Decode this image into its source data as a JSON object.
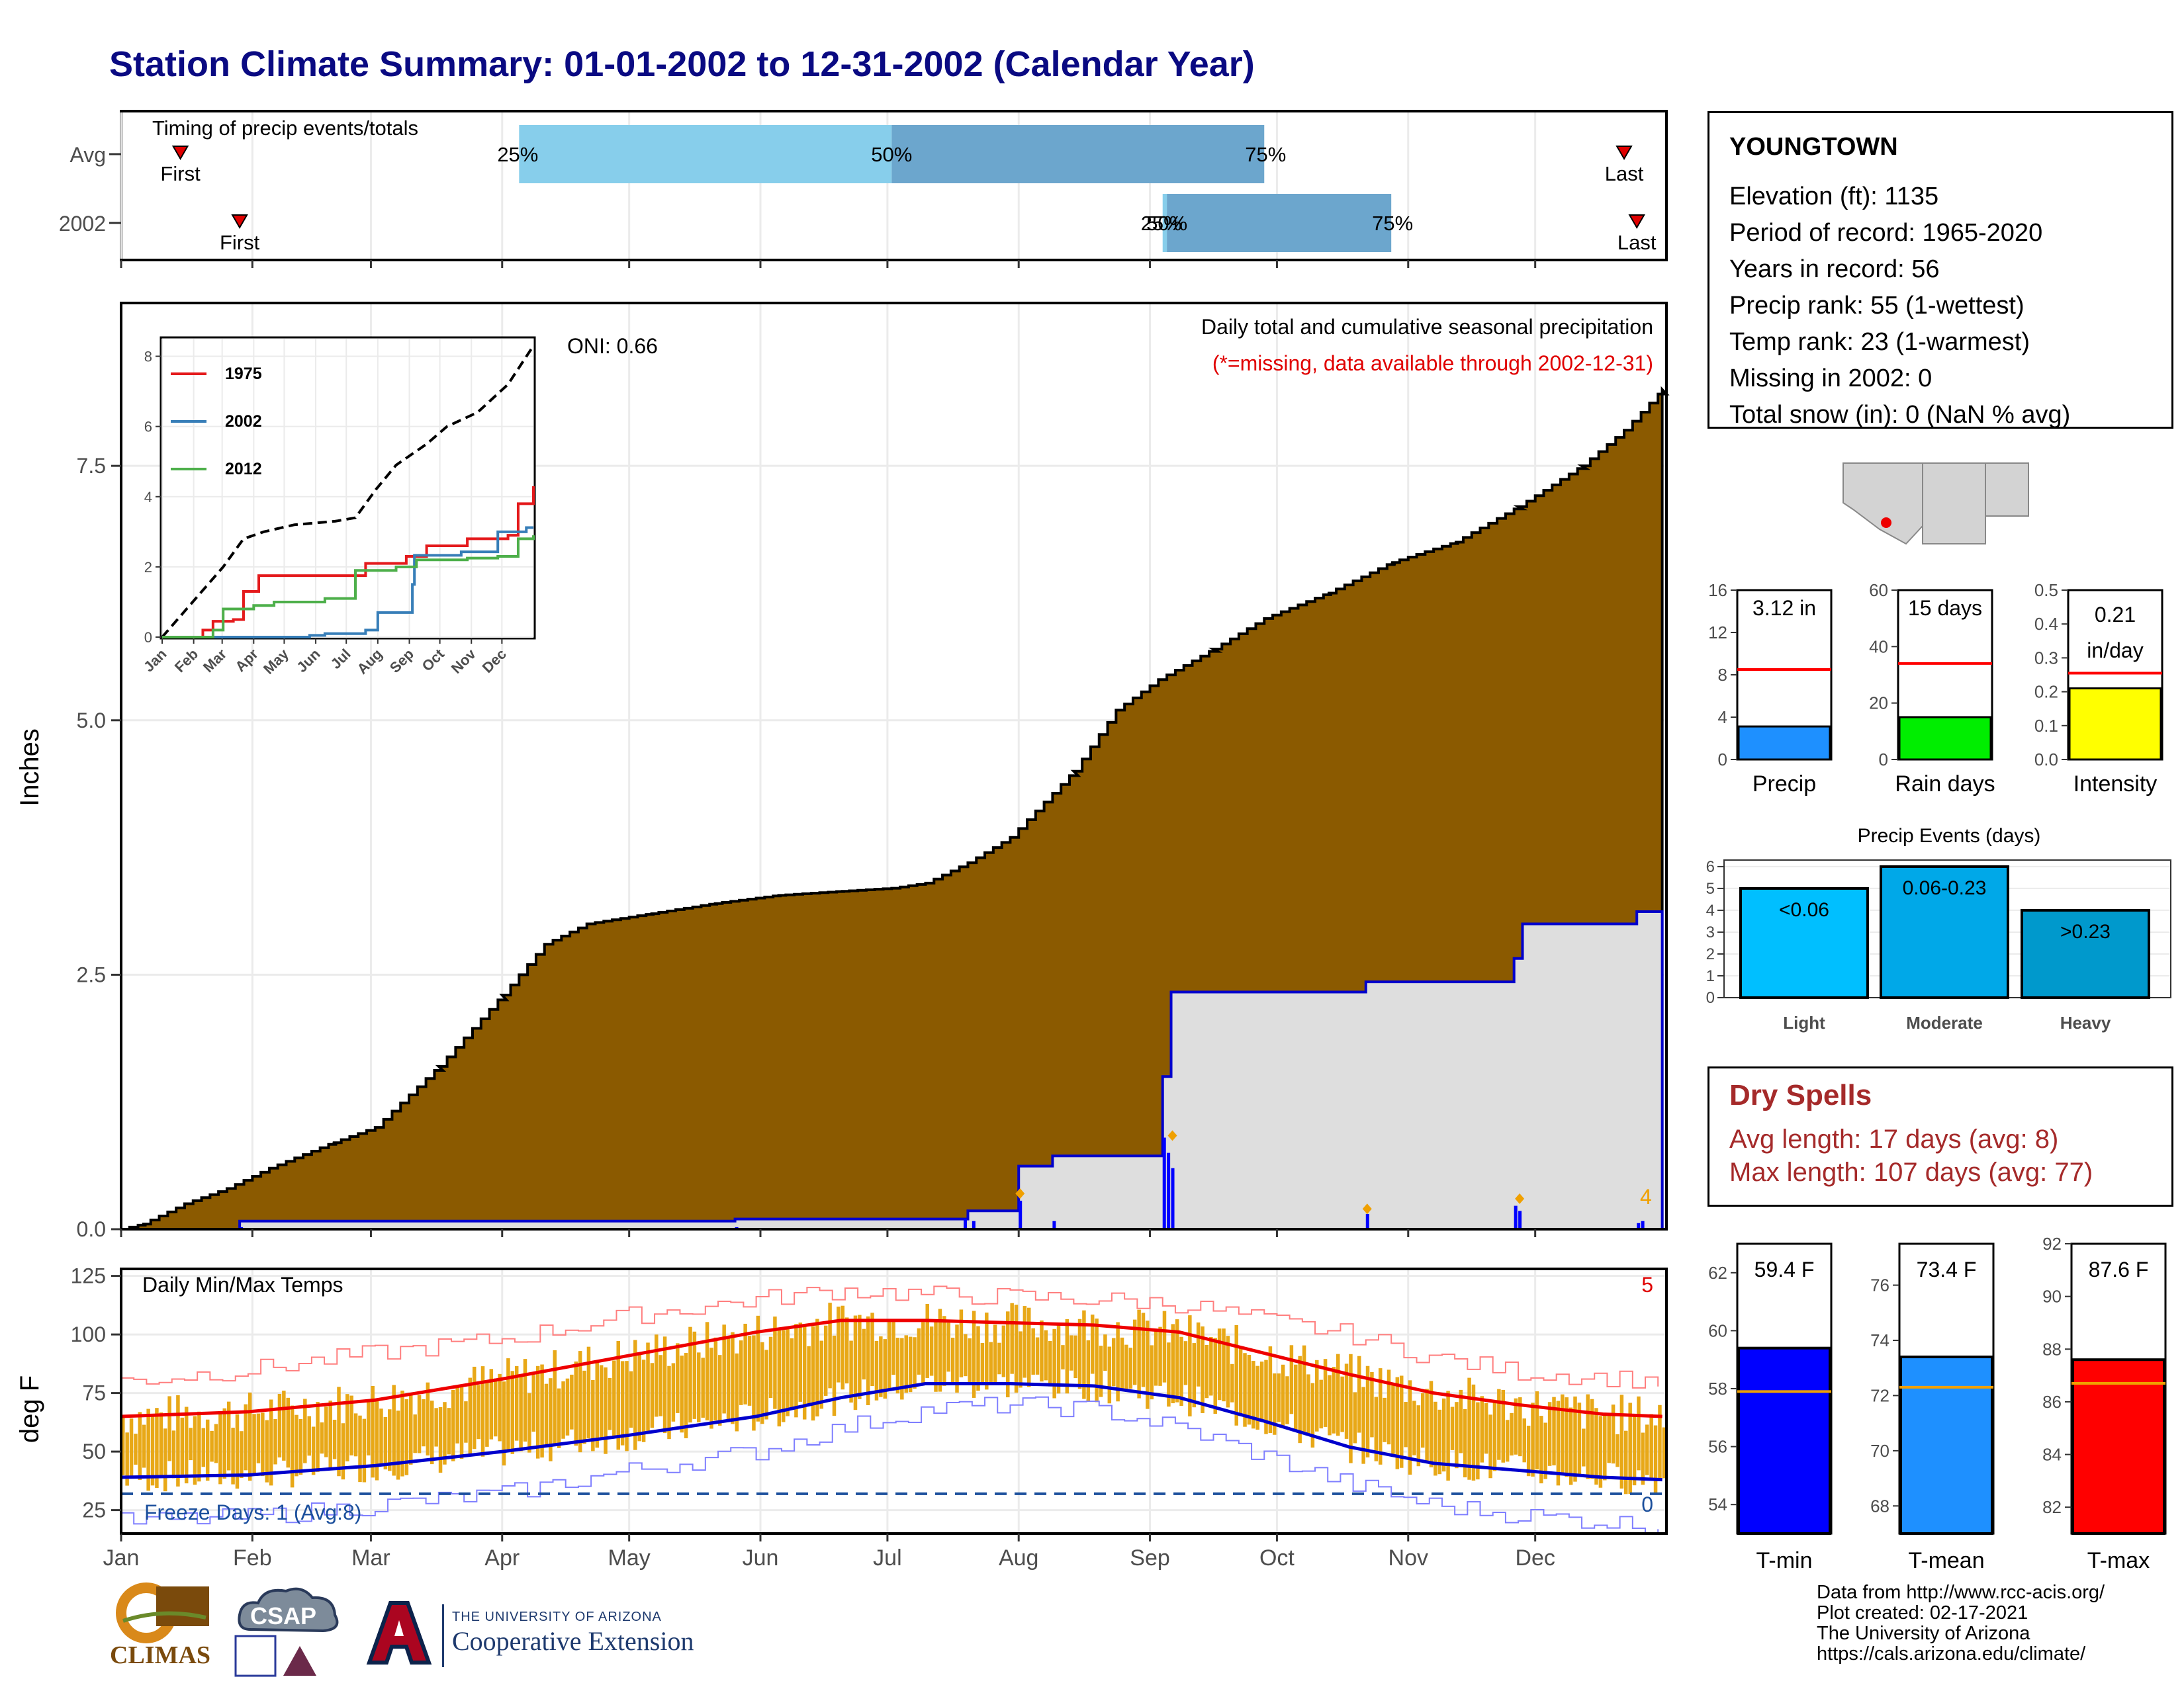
{
  "title": "Station Climate Summary: 01-01-2002 to 12-31-2002 (Calendar Year)",
  "timing_panel": {
    "label": "Timing of precip events/totals",
    "rows": [
      {
        "name": "Avg",
        "first_label": "First",
        "last_label": "Last",
        "first_doy": 14,
        "last_doy": 355,
        "q25_doy": 94,
        "q50_doy": 182,
        "q75_doy": 270,
        "q25_label": "25%",
        "q50_label": "50%",
        "q75_label": "75%"
      },
      {
        "name": "2002",
        "first_label": "First",
        "last_label": "Last",
        "first_doy": 28,
        "last_doy": 358,
        "q25_doy": 246,
        "q50_doy": 247,
        "q75_doy": 300,
        "q25_label": "25%",
        "q50_label": "50%",
        "q75_label": "75%"
      }
    ],
    "colors": {
      "q25_q50": "#87ceeb",
      "q50_q75": "#6ca6cd",
      "marker": "#e00000"
    }
  },
  "precip_panel": {
    "ylabel": "Inches",
    "yticks": [
      "0.0",
      "2.5",
      "5.0",
      "7.5"
    ],
    "header": "Daily total and cumulative seasonal precipitation",
    "missing_note": "(*=missing, data available through 2002-12-31)",
    "oni": "ONI: 0.66",
    "missing_count": "4",
    "fill_avg_color": "#8b5a00",
    "fill_year_color": "#dedede",
    "avg_cumulative": [
      [
        0,
        0
      ],
      [
        5,
        0.05
      ],
      [
        15,
        0.25
      ],
      [
        25,
        0.4
      ],
      [
        35,
        0.6
      ],
      [
        50,
        0.85
      ],
      [
        60,
        1.0
      ],
      [
        75,
        1.6
      ],
      [
        90,
        2.3
      ],
      [
        100,
        2.8
      ],
      [
        110,
        3.0
      ],
      [
        125,
        3.1
      ],
      [
        140,
        3.2
      ],
      [
        155,
        3.28
      ],
      [
        170,
        3.32
      ],
      [
        182,
        3.35
      ],
      [
        190,
        3.4
      ],
      [
        200,
        3.6
      ],
      [
        210,
        3.85
      ],
      [
        225,
        4.5
      ],
      [
        235,
        5.1
      ],
      [
        245,
        5.4
      ],
      [
        258,
        5.7
      ],
      [
        270,
        6.0
      ],
      [
        285,
        6.25
      ],
      [
        300,
        6.55
      ],
      [
        315,
        6.75
      ],
      [
        330,
        7.1
      ],
      [
        345,
        7.5
      ],
      [
        355,
        7.85
      ],
      [
        364,
        8.25
      ]
    ],
    "year_cumulative": [
      [
        0,
        0
      ],
      [
        28,
        0
      ],
      [
        28,
        0.08
      ],
      [
        145,
        0.08
      ],
      [
        145,
        0.1
      ],
      [
        200,
        0.1
      ],
      [
        200,
        0.18
      ],
      [
        212,
        0.18
      ],
      [
        212,
        0.62
      ],
      [
        220,
        0.62
      ],
      [
        220,
        0.72
      ],
      [
        246,
        0.72
      ],
      [
        246,
        1.5
      ],
      [
        248,
        1.5
      ],
      [
        248,
        2.33
      ],
      [
        294,
        2.33
      ],
      [
        294,
        2.43
      ],
      [
        329,
        2.43
      ],
      [
        329,
        2.66
      ],
      [
        331,
        2.66
      ],
      [
        331,
        3.0
      ],
      [
        358,
        3.0
      ],
      [
        358,
        3.12
      ],
      [
        364,
        3.12
      ]
    ],
    "daily_events": [
      [
        28,
        0.02
      ],
      [
        145,
        0.02
      ],
      [
        199,
        0.1
      ],
      [
        201,
        0.08
      ],
      [
        212,
        0.28
      ],
      [
        220,
        0.08
      ],
      [
        246,
        0.9
      ],
      [
        247,
        0.75
      ],
      [
        248,
        0.6
      ],
      [
        294,
        0.15
      ],
      [
        329,
        0.23
      ],
      [
        330,
        0.18
      ],
      [
        358,
        0.06
      ],
      [
        359,
        0.08
      ]
    ],
    "missing_marks": [
      [
        212,
        0.35
      ],
      [
        248,
        0.92
      ],
      [
        294,
        0.2
      ],
      [
        330,
        0.3
      ]
    ]
  },
  "inset_chart": {
    "yticks": [
      "0",
      "2",
      "4",
      "6",
      "8"
    ],
    "months": [
      "Jan",
      "Feb",
      "Mar",
      "Apr",
      "May",
      "Jun",
      "Jul",
      "Aug",
      "Sep",
      "Oct",
      "Nov",
      "Dec"
    ],
    "series": [
      {
        "name": "1975",
        "color": "#e41a1c",
        "points": [
          [
            0,
            0
          ],
          [
            40,
            0.2
          ],
          [
            50,
            0.45
          ],
          [
            70,
            0.5
          ],
          [
            80,
            1.3
          ],
          [
            95,
            1.75
          ],
          [
            180,
            1.75
          ],
          [
            200,
            2.1
          ],
          [
            240,
            2.3
          ],
          [
            260,
            2.6
          ],
          [
            300,
            2.8
          ],
          [
            340,
            2.9
          ],
          [
            350,
            3.8
          ],
          [
            365,
            4.3
          ]
        ]
      },
      {
        "name": "2002",
        "color": "#377eb8",
        "points": [
          [
            0,
            0
          ],
          [
            145,
            0.05
          ],
          [
            160,
            0.1
          ],
          [
            200,
            0.2
          ],
          [
            212,
            0.7
          ],
          [
            246,
            1.5
          ],
          [
            248,
            2.33
          ],
          [
            294,
            2.43
          ],
          [
            330,
            3.0
          ],
          [
            358,
            3.12
          ],
          [
            365,
            3.12
          ]
        ]
      },
      {
        "name": "2012",
        "color": "#4daf4a",
        "points": [
          [
            0,
            0
          ],
          [
            50,
            0.2
          ],
          [
            60,
            0.8
          ],
          [
            90,
            0.9
          ],
          [
            110,
            1.0
          ],
          [
            160,
            1.1
          ],
          [
            190,
            1.9
          ],
          [
            230,
            2.0
          ],
          [
            250,
            2.2
          ],
          [
            300,
            2.25
          ],
          [
            330,
            2.3
          ],
          [
            350,
            2.8
          ],
          [
            365,
            2.9
          ]
        ]
      }
    ],
    "avg_points": [
      [
        0,
        0
      ],
      [
        30,
        1.0
      ],
      [
        60,
        2.0
      ],
      [
        80,
        2.8
      ],
      [
        100,
        3.0
      ],
      [
        130,
        3.2
      ],
      [
        170,
        3.3
      ],
      [
        190,
        3.4
      ],
      [
        210,
        4.2
      ],
      [
        230,
        4.9
      ],
      [
        260,
        5.5
      ],
      [
        280,
        6.0
      ],
      [
        310,
        6.4
      ],
      [
        340,
        7.2
      ],
      [
        365,
        8.3
      ]
    ]
  },
  "temp_panel": {
    "label": "Daily Min/Max Temps",
    "ylabel": "deg F",
    "yticks": [
      "25",
      "50",
      "75",
      "100",
      "125"
    ],
    "freeze_label": "Freeze Days: 1 (Avg:8)",
    "missing_count_top": "5",
    "missing_count_bottom": "0",
    "freeze_line": 32,
    "avg_max": [
      [
        0,
        65
      ],
      [
        30,
        67
      ],
      [
        60,
        72
      ],
      [
        90,
        81
      ],
      [
        120,
        91
      ],
      [
        150,
        101
      ],
      [
        170,
        106
      ],
      [
        190,
        106
      ],
      [
        210,
        105
      ],
      [
        230,
        104
      ],
      [
        250,
        101
      ],
      [
        270,
        92
      ],
      [
        290,
        83
      ],
      [
        310,
        75
      ],
      [
        330,
        70
      ],
      [
        350,
        66
      ],
      [
        364,
        65
      ]
    ],
    "avg_min": [
      [
        0,
        39
      ],
      [
        30,
        40
      ],
      [
        60,
        44
      ],
      [
        90,
        50
      ],
      [
        120,
        57
      ],
      [
        150,
        65
      ],
      [
        170,
        73
      ],
      [
        190,
        79
      ],
      [
        210,
        79
      ],
      [
        230,
        78
      ],
      [
        250,
        73
      ],
      [
        270,
        63
      ],
      [
        290,
        52
      ],
      [
        310,
        45
      ],
      [
        330,
        42
      ],
      [
        350,
        39
      ],
      [
        364,
        38
      ]
    ],
    "rec_max": [
      [
        0,
        80
      ],
      [
        30,
        85
      ],
      [
        60,
        92
      ],
      [
        90,
        98
      ],
      [
        120,
        108
      ],
      [
        150,
        115
      ],
      [
        170,
        119
      ],
      [
        190,
        117
      ],
      [
        210,
        116
      ],
      [
        230,
        115
      ],
      [
        250,
        113
      ],
      [
        270,
        106
      ],
      [
        290,
        100
      ],
      [
        310,
        90
      ],
      [
        330,
        84
      ],
      [
        364,
        80
      ]
    ],
    "rec_min": [
      [
        0,
        20
      ],
      [
        30,
        22
      ],
      [
        60,
        27
      ],
      [
        90,
        32
      ],
      [
        120,
        42
      ],
      [
        150,
        50
      ],
      [
        170,
        60
      ],
      [
        190,
        68
      ],
      [
        210,
        70
      ],
      [
        230,
        68
      ],
      [
        250,
        60
      ],
      [
        270,
        48
      ],
      [
        290,
        36
      ],
      [
        310,
        27
      ],
      [
        330,
        23
      ],
      [
        364,
        18
      ]
    ],
    "bar_color": "#e8a817"
  },
  "months": [
    "Jan",
    "Feb",
    "Mar",
    "Apr",
    "May",
    "Jun",
    "Jul",
    "Aug",
    "Sep",
    "Oct",
    "Nov",
    "Dec"
  ],
  "month_start_doy": [
    0,
    31,
    59,
    90,
    120,
    151,
    181,
    212,
    243,
    273,
    304,
    334
  ],
  "info": {
    "station": "YOUNGTOWN",
    "lines": [
      "Elevation (ft): 1135",
      "Period of record: 1965-2020",
      "Years in record: 56",
      "Precip rank: 55 (1-wettest)",
      "Temp rank: 23 (1-warmest)",
      "Missing in 2002: 0",
      "Total snow (in): 0 (NaN % avg)"
    ]
  },
  "mini_bars": [
    {
      "label": "Precip",
      "value_text": "3.12 in",
      "value": 3.12,
      "avg": 8.5,
      "ymax": 16,
      "yticks": [
        "0",
        "4",
        "8",
        "12",
        "16"
      ],
      "color": "#1e90ff"
    },
    {
      "label": "Rain days",
      "value_text": "15 days",
      "value": 15,
      "avg": 34,
      "ymax": 60,
      "yticks": [
        "0",
        "20",
        "40",
        "60"
      ],
      "color": "#00ee00"
    },
    {
      "label": "Intensity",
      "value_text": "0.21 in/day",
      "value_line1": "0.21",
      "value_line2": "in/day",
      "value": 0.21,
      "avg": 0.255,
      "ymax": 0.5,
      "yticks": [
        "0.0",
        "0.1",
        "0.2",
        "0.3",
        "0.4",
        "0.5"
      ],
      "color": "#ffff00"
    }
  ],
  "precip_events": {
    "title": "Precip Events (days)",
    "yticks": [
      "0",
      "1",
      "2",
      "3",
      "4",
      "5",
      "6"
    ],
    "ymax": 6.3,
    "bars": [
      {
        "category": "Light",
        "label": "<0.06",
        "value": 5,
        "color": "#00bfff"
      },
      {
        "category": "Moderate",
        "label": "0.06-0.23",
        "value": 6,
        "color": "#00a8e8"
      },
      {
        "category": "Heavy",
        "label": ">0.23",
        "value": 4,
        "color": "#0099cc"
      }
    ]
  },
  "dry_spells": {
    "title": "Dry Spells",
    "avg_length": "Avg length: 17 days (avg: 8)",
    "max_length": "Max length: 107 days (avg: 77)"
  },
  "temp_bars": [
    {
      "label": "T-min",
      "value_text": "59.4 F",
      "value": 59.4,
      "avg": 57.9,
      "ymin": 53,
      "ymax": 63,
      "yticks": [
        "54",
        "56",
        "58",
        "60",
        "62"
      ],
      "color": "#0000ff"
    },
    {
      "label": "T-mean",
      "value_text": "73.4 F",
      "value": 73.4,
      "avg": 72.3,
      "ymin": 67,
      "ymax": 77.5,
      "yticks": [
        "68",
        "70",
        "72",
        "74",
        "76"
      ],
      "color": "#1e90ff"
    },
    {
      "label": "T-max",
      "value_text": "87.6 F",
      "value": 87.6,
      "avg": 86.7,
      "ymin": 81,
      "ymax": 92,
      "yticks": [
        "82",
        "84",
        "86",
        "88",
        "90",
        "92"
      ],
      "color": "#ff0000"
    }
  ],
  "credits": [
    "Data from http://www.rcc-acis.org/",
    "Plot created: 02-17-2021",
    "The University of Arizona",
    "https://cals.arizona.edu/climate/"
  ],
  "logos": {
    "climas": "CLIMAS",
    "csap": "CSAP",
    "ua_small": "THE UNIVERSITY OF ARIZONA",
    "ua_big": "Cooperative Extension"
  },
  "chart_data": [
    {
      "type": "bar",
      "title": "Timing of precip events/totals",
      "categories": [
        "Avg",
        "2002"
      ],
      "series": [
        {
          "name": "25%",
          "values": [
            94,
            246
          ]
        },
        {
          "name": "50%",
          "values": [
            182,
            247
          ]
        },
        {
          "name": "75%",
          "values": [
            270,
            300
          ]
        }
      ]
    },
    {
      "type": "area",
      "title": "Daily total and cumulative seasonal precipitation",
      "ylabel": "Inches",
      "ylim": [
        0,
        9.1
      ],
      "x": [
        "Jan",
        "Feb",
        "Mar",
        "Apr",
        "May",
        "Jun",
        "Jul",
        "Aug",
        "Sep",
        "Oct",
        "Nov",
        "Dec"
      ],
      "series": [
        {
          "values": [
            0.25,
            0.85,
            1.0,
            2.8,
            3.1,
            3.3,
            3.35,
            3.85,
            5.4,
            6.0,
            6.55,
            7.1
          ]
        },
        {
          "values": [
            0,
            0.08,
            0.08,
            0.08,
            0.1,
            0.1,
            0.1,
            0.62,
            0.72,
            2.33,
            2.33,
            2.66
          ]
        }
      ]
    },
    {
      "type": "line",
      "title": "Daily Min/Max Temps",
      "ylabel": "deg F",
      "ylim": [
        15,
        128
      ],
      "x": [
        "Jan",
        "Feb",
        "Mar",
        "Apr",
        "May",
        "Jun",
        "Jul",
        "Aug",
        "Sep",
        "Oct",
        "Nov",
        "Dec"
      ],
      "series": [
        {
          "values": [
            65,
            67,
            72,
            81,
            91,
            101,
            106,
            105,
            101,
            92,
            75,
            70
          ]
        },
        {
          "values": [
            39,
            40,
            44,
            50,
            57,
            65,
            78,
            79,
            73,
            63,
            45,
            42
          ]
        }
      ]
    },
    {
      "type": "bar",
      "title": "Precip Events (days)",
      "categories": [
        "Light",
        "Moderate",
        "Heavy"
      ],
      "values": [
        5,
        6,
        4
      ]
    },
    {
      "type": "bar",
      "categories": [
        "Precip",
        "Rain days",
        "Intensity"
      ],
      "values": [
        3.12,
        15,
        0.21
      ]
    },
    {
      "type": "bar",
      "categories": [
        "T-min",
        "T-mean",
        "T-max"
      ],
      "values": [
        59.4,
        73.4,
        87.6
      ]
    }
  ]
}
